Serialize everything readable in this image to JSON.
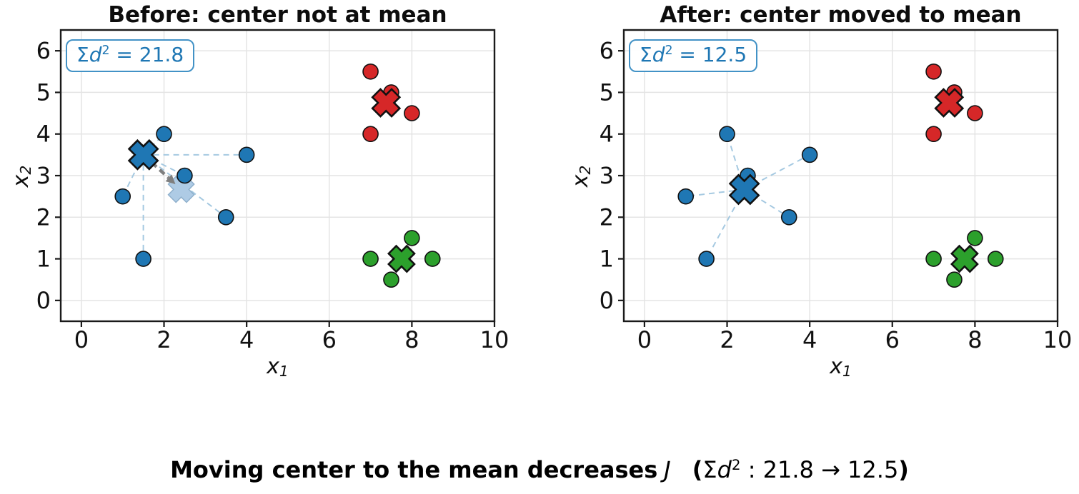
{
  "palette": {
    "blue": "#1f77b4",
    "red": "#d62728",
    "green": "#2ca02c",
    "ghost_blue": "#aecbe5",
    "connector_blue": "#a5c9e1",
    "arrow_gray": "#7f7f7f",
    "grid_gray": "#e4e4e4",
    "spine_black": "#1a1a1a",
    "annotation_text_blue": "#1f77b4",
    "annotation_border_blue": "#4292c6"
  },
  "caption": {
    "bold_text": "Moving center to the mean decreases",
    "j_symbol": "J",
    "paren_open": "(",
    "sigma": "Σ",
    "d": "d",
    "sup": "2",
    "rest": " : 21.8 → 12.5",
    "paren_close": ")"
  },
  "chart_data": [
    {
      "type": "scatter",
      "title": "Before: center not at mean",
      "xlabel": {
        "base": "x",
        "sub": "1"
      },
      "ylabel": {
        "base": "x",
        "sub": "2"
      },
      "xlim": [
        -0.5,
        10.0
      ],
      "ylim": [
        -0.5,
        6.5
      ],
      "xticks": [
        0,
        2,
        4,
        6,
        8,
        10
      ],
      "yticks": [
        0,
        1,
        2,
        3,
        4,
        5,
        6
      ],
      "grid": true,
      "legend": false,
      "annotation": {
        "sigma": "Σ",
        "d": "d",
        "sup": "2",
        "value": " = 21.8"
      },
      "sum_sq_dist": 21.8,
      "series": [
        {
          "name": "blue-cluster-points",
          "color": "#1f77b4",
          "marker": "circle",
          "points": [
            [
              2,
              4
            ],
            [
              4,
              3.5
            ],
            [
              2.5,
              3
            ],
            [
              1,
              2.5
            ],
            [
              3.5,
              2
            ],
            [
              1.5,
              1
            ]
          ]
        },
        {
          "name": "red-cluster-points",
          "color": "#d62728",
          "marker": "circle",
          "points": [
            [
              7,
              5.5
            ],
            [
              7.5,
              5
            ],
            [
              8,
              4.5
            ],
            [
              7,
              4
            ]
          ]
        },
        {
          "name": "green-cluster-points",
          "color": "#2ca02c",
          "marker": "circle",
          "points": [
            [
              7,
              1
            ],
            [
              8,
              1.5
            ],
            [
              8.5,
              1
            ],
            [
              7.5,
              0.5
            ]
          ]
        }
      ],
      "centers": [
        {
          "name": "blue-center-marker",
          "color": "#1f77b4",
          "pos": [
            1.5,
            3.5
          ],
          "size": 40
        },
        {
          "name": "red-center-marker",
          "color": "#d62728",
          "pos": [
            7.375,
            4.75
          ],
          "size": 38
        },
        {
          "name": "green-center-marker",
          "color": "#2ca02c",
          "pos": [
            7.75,
            1.0
          ],
          "size": 36
        }
      ],
      "ghost_center": {
        "name": "blue-mean-ghost-marker",
        "color": "#aecbe5",
        "pos": [
          2.4167,
          2.6667
        ],
        "size": 36
      },
      "connector": {
        "center": [
          1.5,
          3.5
        ],
        "series": "blue-cluster-points",
        "color": "#a5c9e1"
      },
      "arrow": {
        "from": [
          1.5,
          3.5
        ],
        "to": [
          2.4167,
          2.6667
        ],
        "color": "#7f7f7f"
      }
    },
    {
      "type": "scatter",
      "title": "After: center moved to mean",
      "xlabel": {
        "base": "x",
        "sub": "1"
      },
      "ylabel": {
        "base": "x",
        "sub": "2"
      },
      "xlim": [
        -0.5,
        10.0
      ],
      "ylim": [
        -0.5,
        6.5
      ],
      "xticks": [
        0,
        2,
        4,
        6,
        8,
        10
      ],
      "yticks": [
        0,
        1,
        2,
        3,
        4,
        5,
        6
      ],
      "grid": true,
      "legend": false,
      "annotation": {
        "sigma": "Σ",
        "d": "d",
        "sup": "2",
        "value": " = 12.5"
      },
      "sum_sq_dist": 12.5,
      "series": [
        {
          "name": "blue-cluster-points",
          "color": "#1f77b4",
          "marker": "circle",
          "points": [
            [
              2,
              4
            ],
            [
              4,
              3.5
            ],
            [
              2.5,
              3
            ],
            [
              1,
              2.5
            ],
            [
              3.5,
              2
            ],
            [
              1.5,
              1
            ]
          ]
        },
        {
          "name": "red-cluster-points",
          "color": "#d62728",
          "marker": "circle",
          "points": [
            [
              7,
              5.5
            ],
            [
              7.5,
              5
            ],
            [
              8,
              4.5
            ],
            [
              7,
              4
            ]
          ]
        },
        {
          "name": "green-cluster-points",
          "color": "#2ca02c",
          "marker": "circle",
          "points": [
            [
              7,
              1
            ],
            [
              8,
              1.5
            ],
            [
              8.5,
              1
            ],
            [
              7.5,
              0.5
            ]
          ]
        }
      ],
      "centers": [
        {
          "name": "blue-center-marker",
          "color": "#1f77b4",
          "pos": [
            2.4167,
            2.6667
          ],
          "size": 40
        },
        {
          "name": "red-center-marker",
          "color": "#d62728",
          "pos": [
            7.375,
            4.75
          ],
          "size": 38
        },
        {
          "name": "green-center-marker",
          "color": "#2ca02c",
          "pos": [
            7.75,
            1.0
          ],
          "size": 36
        }
      ],
      "connector": {
        "center": [
          2.4167,
          2.6667
        ],
        "series": "blue-cluster-points",
        "color": "#a5c9e1"
      }
    }
  ]
}
